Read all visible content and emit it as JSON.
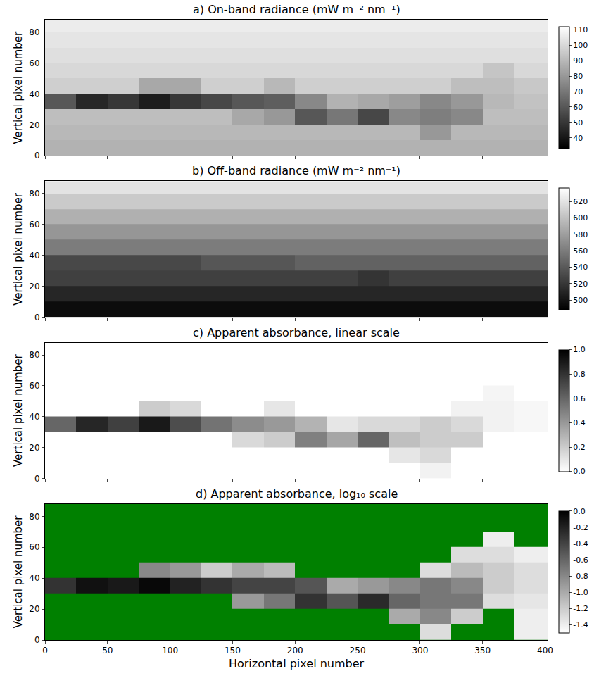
{
  "chart_data": [
    {
      "type": "heatmap",
      "title": "a) On-band radiance (mW m⁻² nm⁻¹)",
      "ylabel": "Vertical pixel number",
      "tick_labels": "y",
      "x": [
        0,
        25,
        50,
        75,
        100,
        125,
        150,
        175,
        200,
        225,
        250,
        275,
        300,
        325,
        350,
        375,
        402
      ],
      "y": [
        0,
        10,
        20,
        30,
        40,
        50,
        60,
        70,
        80,
        88
      ],
      "z": [
        [
          88,
          88,
          88,
          88,
          88,
          88,
          88,
          88,
          88,
          88,
          88,
          88,
          88,
          88,
          88,
          88
        ],
        [
          90,
          90,
          90,
          90,
          90,
          90,
          90,
          90,
          90,
          90,
          90,
          90,
          80,
          90,
          90,
          90
        ],
        [
          92,
          92,
          92,
          92,
          92,
          92,
          85,
          80,
          60,
          70,
          55,
          75,
          72,
          75,
          92,
          92
        ],
        [
          60,
          45,
          50,
          42,
          50,
          55,
          60,
          62,
          75,
          88,
          85,
          82,
          75,
          80,
          90,
          93
        ],
        [
          97,
          97,
          97,
          85,
          85,
          97,
          97,
          90,
          97,
          97,
          97,
          97,
          97,
          92,
          92,
          95
        ],
        [
          100,
          100,
          100,
          100,
          100,
          100,
          100,
          100,
          100,
          100,
          100,
          100,
          100,
          100,
          94,
          100
        ],
        [
          102,
          102,
          102,
          102,
          102,
          102,
          102,
          102,
          102,
          102,
          102,
          102,
          102,
          102,
          102,
          102
        ],
        [
          104,
          104,
          104,
          104,
          104,
          104,
          104,
          104,
          104,
          104,
          104,
          104,
          104,
          104,
          104,
          104
        ],
        [
          106,
          106,
          106,
          106,
          106,
          106,
          106,
          106,
          106,
          106,
          106,
          106,
          106,
          106,
          106,
          106
        ]
      ],
      "xlim": [
        0,
        402
      ],
      "ylim": [
        0,
        88
      ],
      "xticks": [
        0,
        50,
        100,
        150,
        200,
        250,
        300,
        350,
        400
      ],
      "yticks": [
        0,
        20,
        40,
        60,
        80
      ],
      "colorbar_range": [
        33,
        112
      ],
      "colorbar_ticks": [
        40,
        50,
        60,
        70,
        80,
        90,
        100,
        110
      ]
    },
    {
      "type": "heatmap",
      "title": "b) Off-band radiance (mW m⁻² nm⁻¹)",
      "ylabel": "Vertical pixel number",
      "tick_labels": "y",
      "x": [
        0,
        25,
        50,
        75,
        100,
        125,
        150,
        175,
        200,
        225,
        250,
        275,
        300,
        325,
        350,
        375,
        402
      ],
      "y": [
        0,
        10,
        20,
        30,
        40,
        50,
        60,
        70,
        80,
        88
      ],
      "z": [
        [
          495,
          495,
          495,
          495,
          495,
          495,
          495,
          495,
          495,
          495,
          495,
          495,
          495,
          495,
          495,
          495
        ],
        [
          510,
          510,
          510,
          510,
          510,
          510,
          510,
          510,
          510,
          510,
          510,
          510,
          510,
          510,
          510,
          510
        ],
        [
          525,
          525,
          525,
          525,
          525,
          525,
          525,
          525,
          525,
          525,
          518,
          525,
          525,
          525,
          525,
          525
        ],
        [
          530,
          530,
          530,
          530,
          530,
          538,
          538,
          538,
          545,
          545,
          545,
          545,
          545,
          545,
          545,
          545
        ],
        [
          560,
          560,
          560,
          560,
          560,
          560,
          560,
          560,
          560,
          560,
          560,
          560,
          560,
          560,
          560,
          560
        ],
        [
          575,
          575,
          575,
          575,
          575,
          575,
          575,
          575,
          575,
          575,
          575,
          575,
          575,
          575,
          575,
          575
        ],
        [
          590,
          590,
          590,
          590,
          590,
          590,
          590,
          590,
          590,
          590,
          590,
          590,
          590,
          590,
          590,
          590
        ],
        [
          605,
          605,
          605,
          605,
          605,
          605,
          605,
          605,
          605,
          605,
          605,
          605,
          605,
          605,
          605,
          605
        ],
        [
          620,
          620,
          620,
          620,
          620,
          620,
          620,
          620,
          620,
          620,
          620,
          620,
          620,
          620,
          620,
          620
        ]
      ],
      "xlim": [
        0,
        402
      ],
      "ylim": [
        0,
        88
      ],
      "xticks": [
        0,
        50,
        100,
        150,
        200,
        250,
        300,
        350,
        400
      ],
      "yticks": [
        0,
        20,
        40,
        60,
        80
      ],
      "colorbar_range": [
        488,
        636
      ],
      "colorbar_ticks": [
        500,
        520,
        540,
        560,
        580,
        600,
        620
      ]
    },
    {
      "type": "heatmap",
      "title": "c) Apparent absorbance, linear scale",
      "ylabel": "Vertical pixel number",
      "tick_labels": "y",
      "x": [
        0,
        25,
        50,
        75,
        100,
        125,
        150,
        175,
        200,
        225,
        250,
        275,
        300,
        325,
        350,
        375,
        402
      ],
      "y": [
        0,
        10,
        20,
        30,
        40,
        50,
        60,
        70,
        80,
        88
      ],
      "z": [
        [
          0,
          0,
          0,
          0,
          0,
          0,
          0,
          0,
          0,
          0,
          0,
          0,
          0.05,
          0,
          0,
          0
        ],
        [
          0,
          0,
          0,
          0,
          0,
          0,
          0,
          0,
          0,
          0,
          0,
          0.1,
          0.15,
          0,
          0,
          0
        ],
        [
          0,
          0,
          0,
          0,
          0,
          0,
          0.15,
          0.2,
          0.5,
          0.35,
          0.6,
          0.25,
          0.2,
          0.2,
          0,
          0
        ],
        [
          0.6,
          0.85,
          0.75,
          0.9,
          0.7,
          0.55,
          0.45,
          0.4,
          0.3,
          0.1,
          0.15,
          0.15,
          0.2,
          0.15,
          0.05,
          0.03
        ],
        [
          0,
          0,
          0,
          0.2,
          0.15,
          0,
          0,
          0.1,
          0,
          0,
          0,
          0,
          0,
          0.05,
          0.05,
          0.03
        ],
        [
          0,
          0,
          0,
          0,
          0,
          0,
          0,
          0,
          0,
          0,
          0,
          0,
          0,
          0,
          0.04,
          0
        ],
        [
          0,
          0,
          0,
          0,
          0,
          0,
          0,
          0,
          0,
          0,
          0,
          0,
          0,
          0,
          0,
          0
        ],
        [
          0,
          0,
          0,
          0,
          0,
          0,
          0,
          0,
          0,
          0,
          0,
          0,
          0,
          0,
          0,
          0
        ],
        [
          0,
          0,
          0,
          0,
          0,
          0,
          0,
          0,
          0,
          0,
          0,
          0,
          0,
          0,
          0,
          0
        ]
      ],
      "xlim": [
        0,
        402
      ],
      "ylim": [
        0,
        88
      ],
      "xticks": [
        0,
        50,
        100,
        150,
        200,
        250,
        300,
        350,
        400
      ],
      "yticks": [
        0,
        20,
        40,
        60,
        80
      ],
      "colorbar_range": [
        0,
        1
      ],
      "colorbar_ticks": [
        {
          "value": 0,
          "label": "0.0"
        },
        {
          "value": 0.2,
          "label": "0.2"
        },
        {
          "value": 0.4,
          "label": "0.4"
        },
        {
          "value": 0.6,
          "label": "0.6"
        },
        {
          "value": 0.8,
          "label": "0.8"
        },
        {
          "value": 1,
          "label": "1.0"
        }
      ]
    },
    {
      "type": "heatmap",
      "title": "d) Apparent absorbance, log₁₀ scale",
      "xlabel": "Horizontal pixel number",
      "ylabel": "Vertical pixel number",
      "color": "#008000",
      "x": [
        0,
        25,
        50,
        75,
        100,
        125,
        150,
        175,
        200,
        225,
        250,
        275,
        300,
        325,
        350,
        375,
        402
      ],
      "y": [
        0,
        10,
        20,
        30,
        40,
        50,
        60,
        70,
        80,
        88
      ],
      "z": [
        [
          null,
          null,
          null,
          null,
          null,
          null,
          null,
          null,
          null,
          null,
          null,
          null,
          -1.3,
          null,
          null,
          -1.4
        ],
        [
          null,
          null,
          null,
          null,
          null,
          null,
          null,
          null,
          null,
          null,
          null,
          -1.0,
          -0.8,
          -1.2,
          null,
          -1.4
        ],
        [
          null,
          null,
          null,
          null,
          null,
          null,
          -0.9,
          -0.7,
          -0.3,
          -0.5,
          -0.25,
          -0.6,
          -0.7,
          -0.7,
          -1.3,
          -1.35
        ],
        [
          -0.3,
          -0.1,
          -0.15,
          -0.05,
          -0.2,
          -0.3,
          -0.4,
          -0.4,
          -0.5,
          -1.0,
          -0.9,
          -0.8,
          -0.7,
          -0.8,
          -1.2,
          -1.3
        ],
        [
          null,
          null,
          null,
          -0.8,
          -0.9,
          -1.2,
          -1.0,
          -1.1,
          null,
          null,
          null,
          null,
          -1.3,
          -1.1,
          -1.2,
          -1.3
        ],
        [
          null,
          null,
          null,
          null,
          null,
          null,
          null,
          null,
          null,
          null,
          null,
          null,
          null,
          -1.3,
          -1.3,
          -1.4
        ],
        [
          null,
          null,
          null,
          null,
          null,
          null,
          null,
          null,
          null,
          null,
          null,
          null,
          null,
          null,
          -1.4,
          null
        ],
        [
          null,
          null,
          null,
          null,
          null,
          null,
          null,
          null,
          null,
          null,
          null,
          null,
          null,
          null,
          null,
          null
        ],
        [
          null,
          null,
          null,
          null,
          null,
          null,
          null,
          null,
          null,
          null,
          null,
          null,
          null,
          null,
          null,
          null
        ]
      ],
      "xlim": [
        0,
        402
      ],
      "ylim": [
        0,
        88
      ],
      "xticks": [
        0,
        50,
        100,
        150,
        200,
        250,
        300,
        350,
        400
      ],
      "yticks": [
        0,
        20,
        40,
        60,
        80
      ],
      "colorbar_range": [
        -1.5,
        0
      ],
      "colorbar_ticks": [
        {
          "value": 0,
          "label": "0.0"
        },
        {
          "value": -0.2,
          "label": "-0.2"
        },
        {
          "value": -0.4,
          "label": "-0.4"
        },
        {
          "value": -0.6,
          "label": "-0.6"
        },
        {
          "value": -0.8,
          "label": "-0.8"
        },
        {
          "value": -1.0,
          "label": "-1.0"
        },
        {
          "value": -1.2,
          "label": "-1.2"
        },
        {
          "value": -1.4,
          "label": "-1.4"
        }
      ]
    }
  ]
}
